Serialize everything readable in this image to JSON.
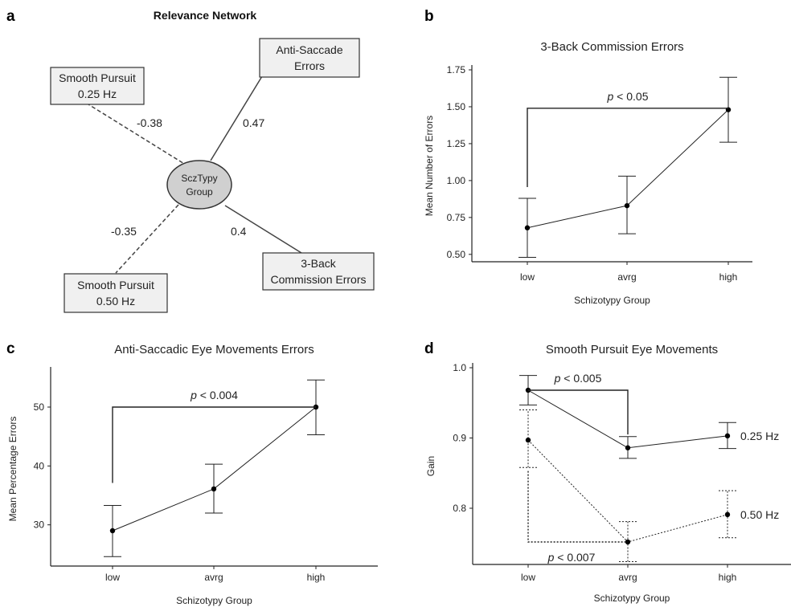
{
  "panel_letters": [
    "a",
    "b",
    "c",
    "d"
  ],
  "network": {
    "title": "Relevance Network",
    "center": [
      "SczTypy",
      "Group"
    ],
    "nodes": [
      {
        "id": "anti",
        "lines": [
          "Anti-Saccade",
          "Errors"
        ],
        "weight": "0.47",
        "style": "solid"
      },
      {
        "id": "sp25",
        "lines": [
          "Smooth Pursuit",
          "0.25 Hz"
        ],
        "weight": "-0.38",
        "style": "dashed"
      },
      {
        "id": "sp50",
        "lines": [
          "Smooth Pursuit",
          "0.50 Hz"
        ],
        "weight": "-0.35",
        "style": "dashed"
      },
      {
        "id": "back3",
        "lines": [
          "3-Back",
          "Commission Errors"
        ],
        "weight": "0.4",
        "style": "solid"
      }
    ]
  },
  "chart_data": [
    {
      "panel": "b",
      "type": "line",
      "title": "3-Back Commission Errors",
      "xlabel": "Schizotypy Group",
      "ylabel": "Mean Number of Errors",
      "categories": [
        "low",
        "avrg",
        "high"
      ],
      "ylim": [
        0.45,
        1.75
      ],
      "yticks": [
        "0.50",
        "0.75",
        "1.00",
        "1.25",
        "1.50",
        "1.75"
      ],
      "series": [
        {
          "values": [
            0.68,
            0.83,
            1.48
          ],
          "err_low": [
            0.48,
            0.64,
            1.26
          ],
          "err_high": [
            0.88,
            1.03,
            1.7
          ],
          "style": "solid"
        }
      ],
      "annotations": [
        {
          "text": "p < 0.05",
          "p": "p",
          "rest": " < 0.05",
          "from": 0,
          "to": 2,
          "bracket_y": 1.49
        }
      ]
    },
    {
      "panel": "c",
      "type": "line",
      "title": "Anti-Saccadic Eye Movements Errors",
      "xlabel": "Schizotypy Group",
      "ylabel": "Mean Percentage Errors",
      "categories": [
        "low",
        "avrg",
        "high"
      ],
      "ylim": [
        23,
        56
      ],
      "yticks": [
        "30",
        "40",
        "50"
      ],
      "series": [
        {
          "values": [
            29,
            36.1,
            50
          ],
          "err_low": [
            24.6,
            32,
            45.3
          ],
          "err_high": [
            33.3,
            40.3,
            54.6
          ],
          "style": "solid"
        }
      ],
      "annotations": [
        {
          "text": "p < 0.004",
          "p": "p",
          "rest": " < 0.004",
          "from": 0,
          "to": 2,
          "bracket_y": 50
        }
      ]
    },
    {
      "panel": "d",
      "type": "line",
      "title": "Smooth Pursuit Eye Movements",
      "xlabel": "Schizotypy Group",
      "ylabel": "Gain",
      "categories": [
        "low",
        "avrg",
        "high"
      ],
      "ylim": [
        0.72,
        1.0
      ],
      "yticks": [
        "0.8",
        "0.9",
        "1.0"
      ],
      "series": [
        {
          "name": "0.25 Hz",
          "values": [
            0.968,
            0.886,
            0.903
          ],
          "err_low": [
            0.947,
            0.871,
            0.885
          ],
          "err_high": [
            0.989,
            0.902,
            0.922
          ],
          "style": "solid"
        },
        {
          "name": "0.50 Hz",
          "values": [
            0.897,
            0.752,
            0.791
          ],
          "err_low": [
            0.858,
            0.724,
            0.758
          ],
          "err_high": [
            0.94,
            0.781,
            0.825
          ],
          "style": "dotted"
        }
      ],
      "annotations": [
        {
          "text": "p < 0.005",
          "p": "p",
          "rest": " < 0.005",
          "from": 0,
          "to": 1,
          "bracket_y": 0.968,
          "series": 0
        },
        {
          "text": "p < 0.007",
          "p": "p",
          "rest": " < 0.007",
          "from": 0,
          "to": 1,
          "bracket_y": 0.752,
          "series": 1
        }
      ]
    }
  ]
}
